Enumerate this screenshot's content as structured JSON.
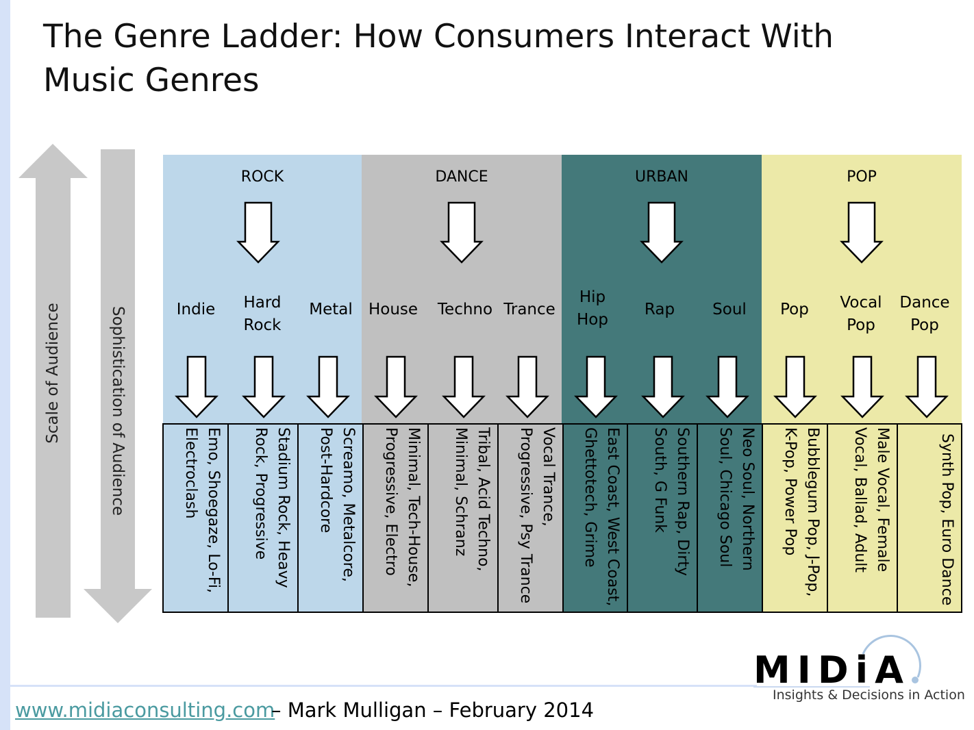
{
  "title": "The Genre Ladder: How Consumers Interact With Music Genres",
  "axes": {
    "scale": "Scale of Audience",
    "sophistication": "Sophistication of Audience"
  },
  "colors": {
    "rock": "#bdd7ea",
    "dance": "#c0c0c0",
    "urban": "#44797a",
    "pop": "#ece9a8",
    "axis_arrow": "#c8c8c8"
  },
  "genres": [
    {
      "name": "ROCK",
      "color": "#bdd7ea",
      "subgenres": [
        {
          "label": "Indie",
          "detail": "Emo, Shoegaze, Lo-Fi, Electroclash"
        },
        {
          "label": "Hard Rock",
          "detail": "Stadium Rock, Heavy Rock, Progressive"
        },
        {
          "label": "Metal",
          "detail": "Screamo, Metalcore, Post-Hardcore"
        }
      ]
    },
    {
      "name": "DANCE",
      "color": "#c0c0c0",
      "subgenres": [
        {
          "label": "House",
          "detail": "Minimal, Tech-House, Progressive, Electro"
        },
        {
          "label": "Techno",
          "detail": "Tribal, Acid Techno, Minimal, Schranz"
        },
        {
          "label": "Trance",
          "detail": "Vocal Trance, Progressive, Psy Trance"
        }
      ]
    },
    {
      "name": "URBAN",
      "color": "#44797a",
      "subgenres": [
        {
          "label": "Hip Hop",
          "detail": "East Coast, West Coast, Ghettotech, Grime"
        },
        {
          "label": "Rap",
          "detail": "Southern Rap, Dirty South, G Funk"
        },
        {
          "label": "Soul",
          "detail": "Neo Soul, Northern Soul, Chicago Soul"
        }
      ]
    },
    {
      "name": "POP",
      "color": "#ece9a8",
      "subgenres": [
        {
          "label": "Pop",
          "detail": "Bubblegum Pop, J-Pop, K-Pop, Power Pop"
        },
        {
          "label": "Vocal Pop",
          "detail": "Male Vocal, Female Vocal, Ballad, Adult"
        },
        {
          "label": "Dance Pop",
          "detail": "Synth Pop, Euro Dance"
        }
      ]
    }
  ],
  "footer": {
    "url": "www.midiaconsulting.com",
    "credit": "– Mark Mulligan – February 2014"
  },
  "logo": {
    "text": "MIDiA",
    "tagline": "Insights & Decisions in Action"
  }
}
